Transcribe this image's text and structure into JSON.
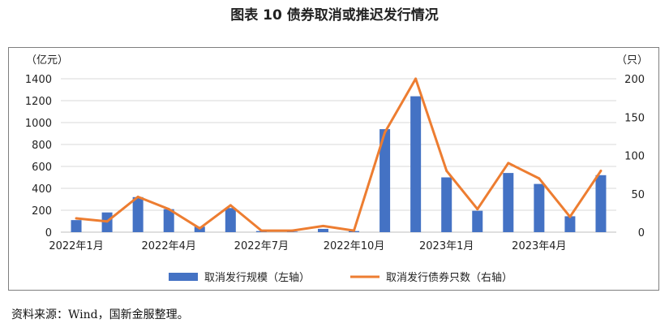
{
  "title": "图表 10 债券取消或推迟发行情况",
  "source": "资料来源：Wind，国新金服整理。",
  "colors": {
    "bar": "#4472C4",
    "line": "#ED7D31",
    "grid": "#d9d9d9",
    "axis": "#bfbfbf"
  },
  "chart_data": {
    "type": "bar",
    "title": "图表 10 债券取消或推迟发行情况",
    "x": [
      "2022-01",
      "2022-02",
      "2022-03",
      "2022-04",
      "2022-05",
      "2022-06",
      "2022-07",
      "2022-08",
      "2022-09",
      "2022-10",
      "2022-11",
      "2022-12",
      "2023-01",
      "2023-02",
      "2023-03",
      "2023-04",
      "2023-05",
      "2023-06"
    ],
    "x_tick_labels": [
      {
        "index": 0,
        "label": "2022年1月"
      },
      {
        "index": 3,
        "label": "2022年4月"
      },
      {
        "index": 6,
        "label": "2022年7月"
      },
      {
        "index": 9,
        "label": "2022年10月"
      },
      {
        "index": 12,
        "label": "2023年1月"
      },
      {
        "index": 15,
        "label": "2023年4月"
      }
    ],
    "y_left": {
      "unit": "（亿元）",
      "ylim": [
        0,
        1400
      ],
      "ticks": [
        0,
        200,
        400,
        600,
        800,
        1000,
        1200,
        1400
      ]
    },
    "y_right": {
      "unit": "（只）",
      "ylim": [
        0,
        200
      ],
      "ticks": [
        0,
        50,
        100,
        150,
        200
      ]
    },
    "grid": true,
    "legend_position": "bottom",
    "series": [
      {
        "name": "取消发行规模（左轴）",
        "type": "bar",
        "axis": "left",
        "values": [
          110,
          180,
          320,
          210,
          50,
          220,
          10,
          5,
          30,
          10,
          940,
          1240,
          500,
          195,
          540,
          440,
          145,
          520
        ]
      },
      {
        "name": "取消发行债券只数（右轴）",
        "type": "line",
        "axis": "right",
        "values": [
          18,
          14,
          46,
          30,
          5,
          35,
          2,
          2,
          8,
          2,
          130,
          200,
          80,
          30,
          90,
          70,
          20,
          80
        ]
      }
    ]
  }
}
